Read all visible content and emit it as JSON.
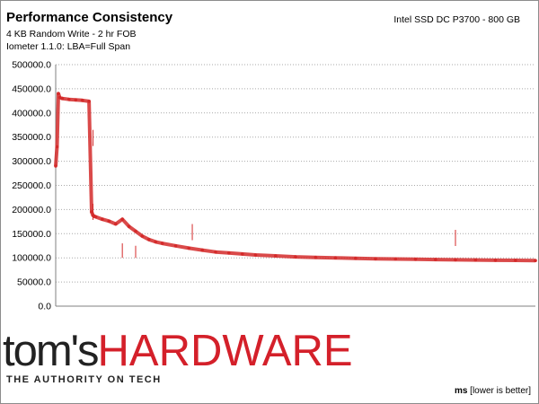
{
  "header": {
    "title": "Performance Consistency",
    "subtitle1": "4 KB Random Write - 2 hr FOB",
    "subtitle2": "Iometer 1.1.0: LBA=Full Span",
    "device": "Intel SSD DC P3700 - 800 GB"
  },
  "branding": {
    "logo_part1": "tom's",
    "logo_part2": "HARDWARE",
    "tagline": "THE AUTHORITY ON TECH",
    "logo_dark_color": "#222222",
    "logo_red_color": "#d4202a"
  },
  "footer": {
    "unit_bold": "ms",
    "unit_rest": " [lower is better]"
  },
  "chart_data": {
    "type": "scatter",
    "title": "Performance Consistency",
    "xlabel": "",
    "ylabel": "",
    "ylim": [
      0,
      500000
    ],
    "y_ticks": [
      0,
      50000,
      100000,
      150000,
      200000,
      250000,
      300000,
      350000,
      400000,
      450000,
      500000
    ],
    "y_tick_labels": [
      "0.0",
      "50000.0",
      "100000.0",
      "150000.0",
      "200000.0",
      "250000.0",
      "300000.0",
      "350000.0",
      "400000.0",
      "450000.0",
      "500000.0"
    ],
    "xlim": [
      0,
      7200
    ],
    "grid": true,
    "series_color": "#d42a2a",
    "series": [
      {
        "name": "",
        "x": [
          0,
          20,
          40,
          60,
          100,
          200,
          300,
          400,
          500,
          540,
          560,
          580,
          600,
          700,
          800,
          900,
          1000,
          1100,
          1200,
          1300,
          1400,
          1500,
          1600,
          1800,
          2000,
          2200,
          2400,
          2600,
          2800,
          3000,
          3300,
          3600,
          3900,
          4200,
          4500,
          4800,
          5100,
          5400,
          5700,
          6000,
          6300,
          6600,
          6900,
          7200
        ],
        "y": [
          290000,
          330000,
          440000,
          432000,
          430000,
          428000,
          427000,
          426000,
          424000,
          195000,
          188000,
          186000,
          185000,
          180000,
          176000,
          170000,
          180000,
          165000,
          155000,
          145000,
          138000,
          133000,
          130000,
          125000,
          120000,
          116000,
          112000,
          110000,
          108000,
          106000,
          104000,
          102000,
          101000,
          100000,
          99000,
          98000,
          97500,
          97000,
          96500,
          96000,
          95500,
          95000,
          94800,
          94500
        ]
      }
    ],
    "spikes": [
      {
        "x": 560,
        "y": 212000
      },
      {
        "x": 560,
        "y": 365000
      },
      {
        "x": 1000,
        "y": 130000
      },
      {
        "x": 1200,
        "y": 125000
      },
      {
        "x": 2050,
        "y": 170000
      },
      {
        "x": 6000,
        "y": 158000
      }
    ]
  }
}
